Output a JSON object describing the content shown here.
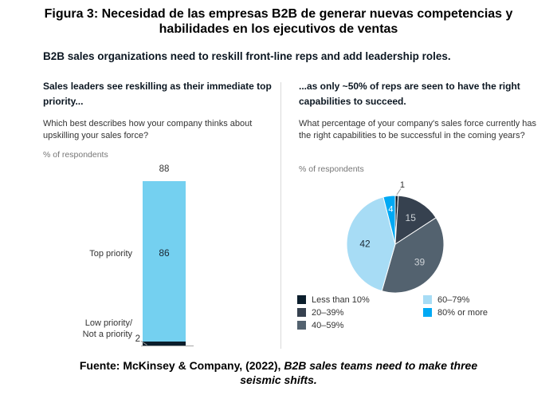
{
  "title": {
    "line1": "Figura 3: Necesidad de las empresas B2B de generar nuevas competencias y",
    "line2": "habilidades en los ejecutivos de ventas"
  },
  "subtitle": "B2B sales organizations need to reskill front-line reps and add leadership roles.",
  "left_panel": {
    "heading": "Sales leaders see reskilling as their immediate top priority...",
    "question": "Which best describes how your company thinks about upskilling your sales force?",
    "unit_label": "% of respondents"
  },
  "right_panel": {
    "heading": "...as only ~50% of reps are seen to have the right capabilities to succeed.",
    "question": "What percentage of your company's sales force currently has the right capabilities to be successful in the coming years?",
    "unit_label": "% of respondents"
  },
  "footer": {
    "regular": "Fuente: McKinsey & Company, (2022), ",
    "italic_line1": "B2B sales teams need to make three",
    "italic_line2": "seismic shifts."
  },
  "chart_data": [
    {
      "type": "bar",
      "title": "Which best describes how your company thinks about upskilling your sales force?",
      "ylabel": "% of respondents",
      "total_label": "88",
      "categories": [
        "Top priority",
        "Low priority/Not a priority"
      ],
      "values": [
        86,
        2
      ],
      "colors": [
        "#74d0f0",
        "#0b1e2c"
      ],
      "display": {
        "low_line1": "Low priority/",
        "low_line2": "Not a priority"
      }
    },
    {
      "type": "pie",
      "title": "What percentage of your company's sales force currently has the right capabilities to be successful in the coming years?",
      "unit": "% of respondents",
      "legend_position": "bottom",
      "slices": [
        {
          "label": "Less than 10%",
          "value": 1,
          "color": "#0b1e2c",
          "label_color": "#333333",
          "outside": true
        },
        {
          "label": "20–39%",
          "value": 15,
          "color": "#36414f",
          "label_color": "#ccd1d6"
        },
        {
          "label": "40–59%",
          "value": 39,
          "color": "#53626f",
          "label_color": "#ccd1d6"
        },
        {
          "label": "60–79%",
          "value": 42,
          "color": "#a7dcf5",
          "label_color": "#1b2733"
        },
        {
          "label": "80% or more",
          "value": 4,
          "color": "#00a9f4",
          "label_color": "#ffffff",
          "label_r": 45
        }
      ]
    }
  ]
}
